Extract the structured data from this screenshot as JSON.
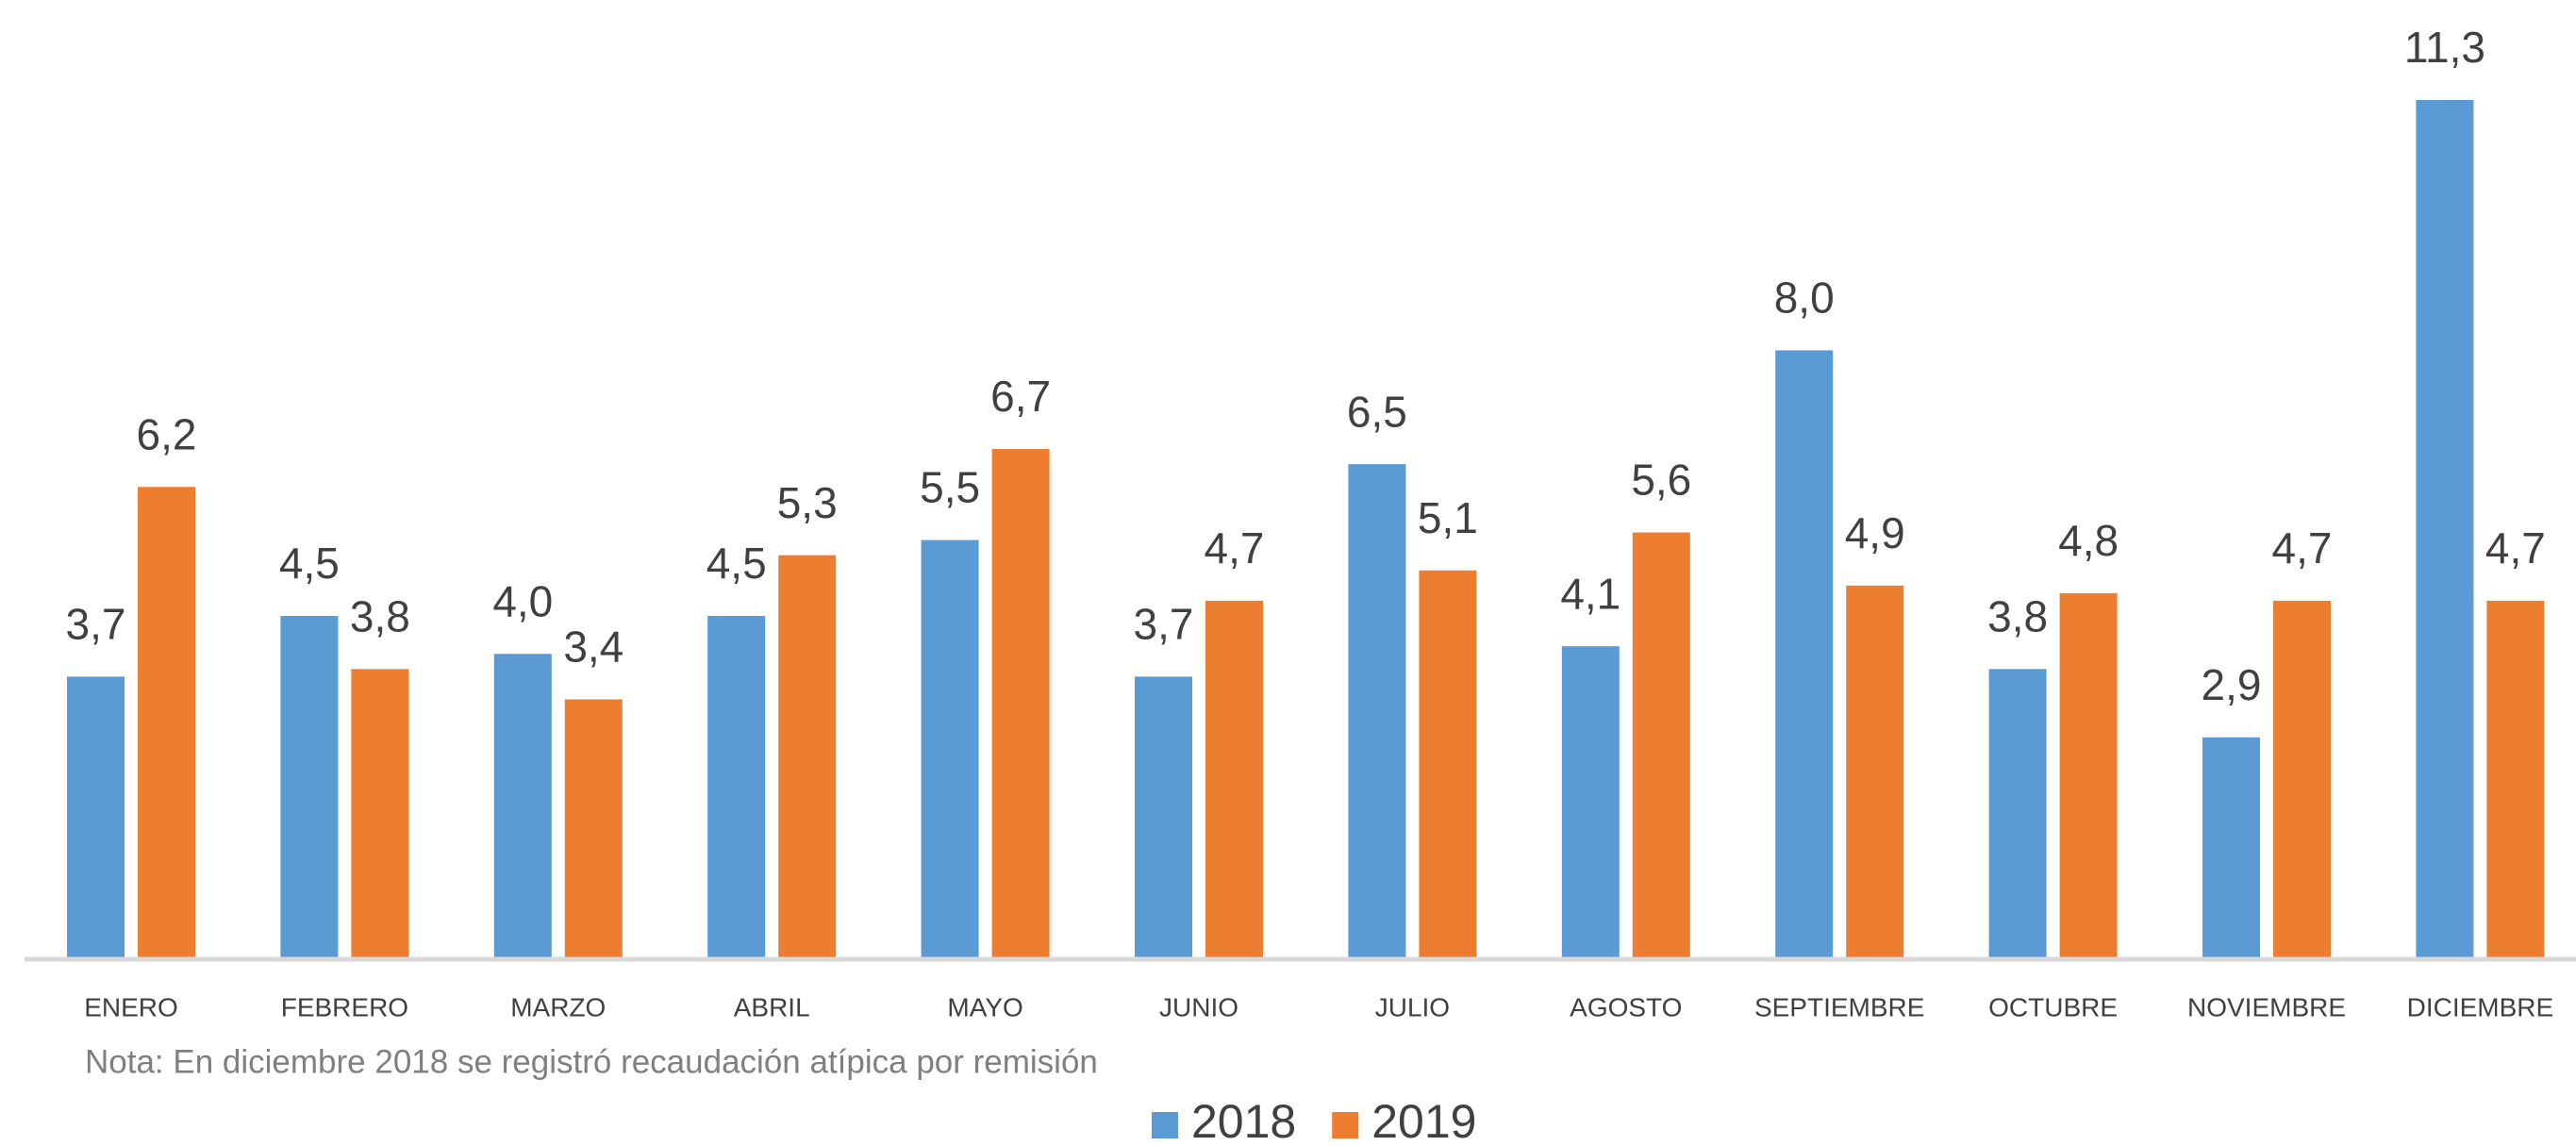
{
  "chart_data": {
    "type": "bar",
    "categories": [
      "ENERO",
      "FEBRERO",
      "MARZO",
      "ABRIL",
      "MAYO",
      "JUNIO",
      "JULIO",
      "AGOSTO",
      "SEPTIEMBRE",
      "OCTUBRE",
      "NOVIEMBRE",
      "DICIEMBRE"
    ],
    "series": [
      {
        "name": "2018",
        "color": "#5b9bd5",
        "values": [
          3.7,
          4.5,
          4.0,
          4.5,
          5.5,
          3.7,
          6.5,
          4.1,
          8.0,
          3.8,
          2.9,
          11.3
        ],
        "value_labels": [
          "3,7",
          "4,5",
          "4,0",
          "4,5",
          "5,5",
          "3,7",
          "6,5",
          "4,1",
          "8,0",
          "3,8",
          "2,9",
          "11,3"
        ]
      },
      {
        "name": "2019",
        "color": "#ed7d31",
        "values": [
          6.2,
          3.8,
          3.4,
          5.3,
          6.7,
          4.7,
          5.1,
          5.6,
          4.9,
          4.8,
          4.7,
          4.7
        ],
        "value_labels": [
          "6,2",
          "3,8",
          "3,4",
          "5,3",
          "6,7",
          "4,7",
          "5,1",
          "5,6",
          "4,9",
          "4,8",
          "4,7",
          "4,7"
        ]
      }
    ],
    "annotation": "Nota: En diciembre 2018 se registró recaudación atípica por remisión",
    "legend": "bottom"
  }
}
